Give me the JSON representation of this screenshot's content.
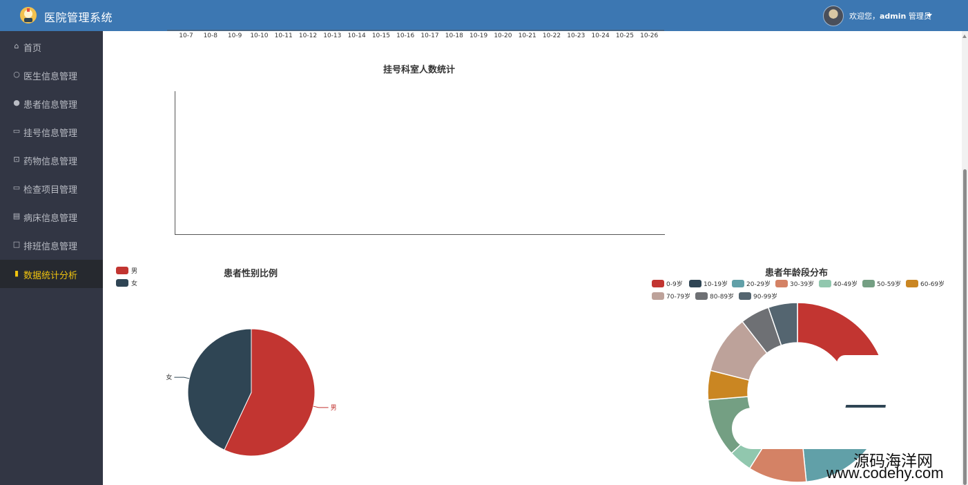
{
  "app": {
    "title": "医院管理系统"
  },
  "user": {
    "welcome_prefix": "欢迎您，",
    "username": "admin",
    "role": " 管理员"
  },
  "sidebar": {
    "items": [
      {
        "label": "首页",
        "icon": "home-icon"
      },
      {
        "label": "医生信息管理",
        "icon": "user-outline-icon"
      },
      {
        "label": "患者信息管理",
        "icon": "user-solid-icon"
      },
      {
        "label": "挂号信息管理",
        "icon": "ticket-icon"
      },
      {
        "label": "药物信息管理",
        "icon": "medicine-box-icon"
      },
      {
        "label": "检查项目管理",
        "icon": "monitor-icon"
      },
      {
        "label": "病床信息管理",
        "icon": "building-icon"
      },
      {
        "label": "排班信息管理",
        "icon": "calendar-icon"
      },
      {
        "label": "数据统计分析",
        "icon": "bar-chart-icon",
        "active": true
      }
    ]
  },
  "registration_trend": {
    "x_ticks": [
      "10-7",
      "10-8",
      "10-9",
      "10-10",
      "10-11",
      "10-12",
      "10-13",
      "10-14",
      "10-15",
      "10-16",
      "10-17",
      "10-18",
      "10-19",
      "10-20",
      "10-21",
      "10-22",
      "10-23",
      "10-24",
      "10-25",
      "10-26"
    ]
  },
  "dept_chart": {
    "title": "挂号科室人数统计"
  },
  "gender_chart": {
    "title": "患者性别比例",
    "legend": [
      {
        "name": "男",
        "color": "#c23531"
      },
      {
        "name": "女",
        "color": "#2f4554"
      }
    ]
  },
  "age_chart": {
    "title": "患者年龄段分布",
    "legend": [
      {
        "name": "0-9岁",
        "color": "#c23531"
      },
      {
        "name": "10-19岁",
        "color": "#2f4554"
      },
      {
        "name": "20-29岁",
        "color": "#61a0a8"
      },
      {
        "name": "30-39岁",
        "color": "#d48265"
      },
      {
        "name": "40-49岁",
        "color": "#91c7ae"
      },
      {
        "name": "50-59岁",
        "color": "#749f83"
      },
      {
        "name": "60-69岁",
        "color": "#ca8622"
      },
      {
        "name": "70-79岁",
        "color": "#bda29a"
      },
      {
        "name": "80-89岁",
        "color": "#6e7074"
      },
      {
        "name": "90-99岁",
        "color": "#546570"
      }
    ]
  },
  "watermark": {
    "line1": "源码海洋网",
    "line2": "www.codehy.com"
  },
  "chart_data": [
    {
      "type": "bar",
      "title": "",
      "categories": [
        "10-7",
        "10-8",
        "10-9",
        "10-10",
        "10-11",
        "10-12",
        "10-13",
        "10-14",
        "10-15",
        "10-16",
        "10-17",
        "10-18",
        "10-19",
        "10-20",
        "10-21",
        "10-22",
        "10-23",
        "10-24",
        "10-25",
        "10-26"
      ]
    },
    {
      "type": "bar",
      "title": "挂号科室人数统计",
      "categories": [],
      "values": []
    },
    {
      "type": "pie",
      "title": "患者性别比例",
      "labels": [
        "男",
        "女"
      ],
      "values": [
        57,
        43
      ],
      "legend_position": "top-left"
    },
    {
      "type": "pie",
      "title": "患者年龄段分布",
      "labels": [
        "0-9岁",
        "10-19岁",
        "20-29岁",
        "30-39岁",
        "40-49岁",
        "50-59岁",
        "60-69岁",
        "70-79岁",
        "80-89岁",
        "90-99岁"
      ],
      "values": [
        20,
        10,
        16,
        10,
        4,
        10,
        5,
        10,
        5,
        5
      ],
      "legend_position": "top"
    }
  ]
}
